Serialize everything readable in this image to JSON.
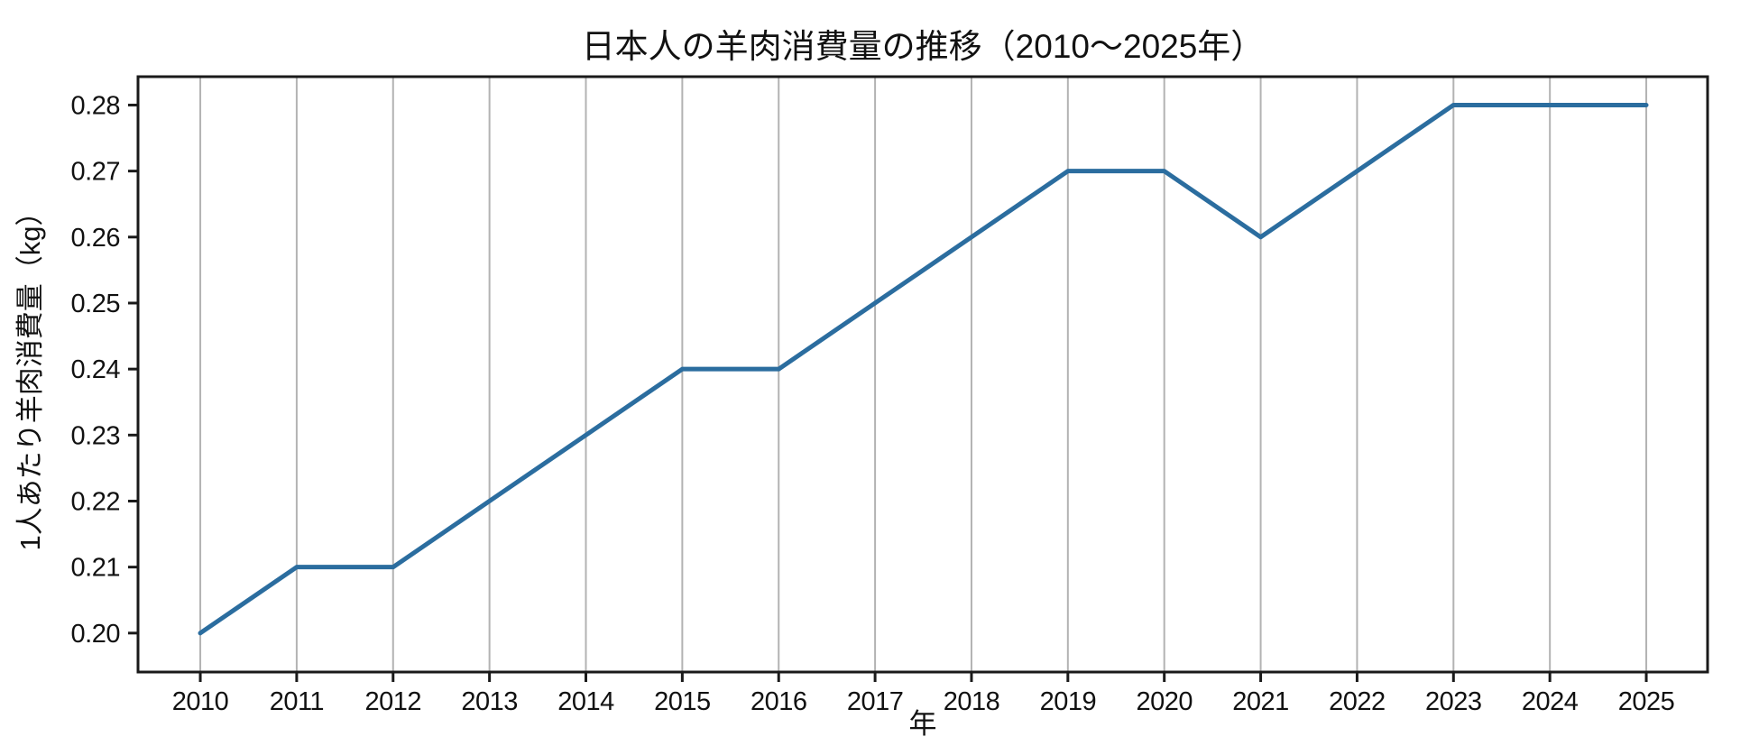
{
  "chart_data": {
    "type": "line",
    "title": "日本人の羊肉消費量の推移（2010～2025年）",
    "xlabel": "年",
    "ylabel": "1人あたり羊肉消費量（kg）",
    "x": [
      2010,
      2011,
      2012,
      2013,
      2014,
      2015,
      2016,
      2017,
      2018,
      2019,
      2020,
      2021,
      2022,
      2023,
      2024,
      2025
    ],
    "values": [
      0.2,
      0.21,
      0.21,
      0.22,
      0.23,
      0.24,
      0.24,
      0.25,
      0.26,
      0.27,
      0.27,
      0.26,
      0.27,
      0.28,
      0.28,
      0.28
    ],
    "series_name": "1人あたり羊肉消費量",
    "xticks": [
      2010,
      2011,
      2012,
      2013,
      2014,
      2015,
      2016,
      2017,
      2018,
      2019,
      2020,
      2021,
      2022,
      2023,
      2024,
      2025
    ],
    "yticks": [
      "0.20",
      "0.21",
      "0.22",
      "0.23",
      "0.24",
      "0.25",
      "0.26",
      "0.27",
      "0.28"
    ],
    "xlim": [
      2009.354,
      2025.636
    ],
    "ylim": [
      0.1941,
      0.2843
    ],
    "grid": "vertical-only",
    "legend": "none",
    "colors": {
      "line": "#2b6d9f",
      "grid": "#b3b3b3",
      "spine": "#1a1a1a",
      "text": "#111111",
      "background": "#ffffff"
    }
  }
}
